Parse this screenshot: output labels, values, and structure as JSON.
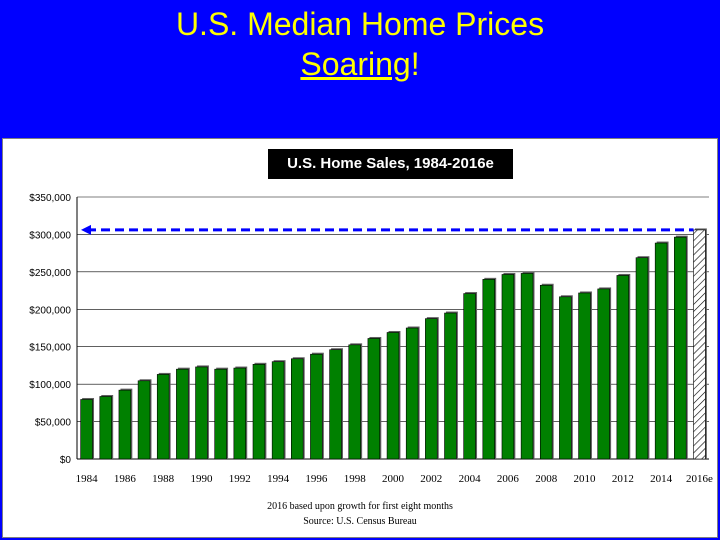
{
  "slide": {
    "title_line1": "U.S. Median Home Prices",
    "title_word_underlined": "Soaring",
    "title_punct": "!"
  },
  "chart_data": {
    "type": "bar",
    "title": "U.S. Home Sales, 1984-2016e",
    "categories": [
      "1984",
      "1985",
      "1986",
      "1987",
      "1988",
      "1989",
      "1990",
      "1991",
      "1992",
      "1993",
      "1994",
      "1995",
      "1996",
      "1997",
      "1998",
      "1999",
      "2000",
      "2001",
      "2002",
      "2003",
      "2004",
      "2005",
      "2006",
      "2007",
      "2008",
      "2009",
      "2010",
      "2011",
      "2012",
      "2013",
      "2014",
      "2015",
      "2016e"
    ],
    "x_tick_labels": [
      "1984",
      "1986",
      "1988",
      "1990",
      "1992",
      "1994",
      "1996",
      "1998",
      "2000",
      "2002",
      "2004",
      "2006",
      "2008",
      "2010",
      "2012",
      "2014",
      "2016e"
    ],
    "values": [
      79500,
      83500,
      92000,
      104500,
      113000,
      120000,
      123000,
      120000,
      121500,
      126500,
      130000,
      133900,
      140000,
      146000,
      152500,
      161000,
      169000,
      175000,
      187500,
      195000,
      221000,
      240000,
      246500,
      247900,
      232100,
      216700,
      221800,
      227200,
      245200,
      268900,
      288500,
      296400,
      306000
    ],
    "estimate_index": 32,
    "ylim": [
      0,
      350000
    ],
    "y_ticks": [
      0,
      50000,
      100000,
      150000,
      200000,
      250000,
      300000,
      350000
    ],
    "y_tick_labels": [
      "$0",
      "$50,000",
      "$100,000",
      "$150,000",
      "$200,000",
      "$250,000",
      "$300,000",
      "$350,000"
    ],
    "reference_line": 306000,
    "bar_color": "#008000",
    "estimate_pattern": "diagonal-hatch",
    "reference_line_color": "#0000ff",
    "grid": true,
    "legend": "none"
  },
  "footnotes": {
    "line1": "2016 based upon growth for first eight months",
    "line2": "Source:  U.S. Census Bureau"
  }
}
